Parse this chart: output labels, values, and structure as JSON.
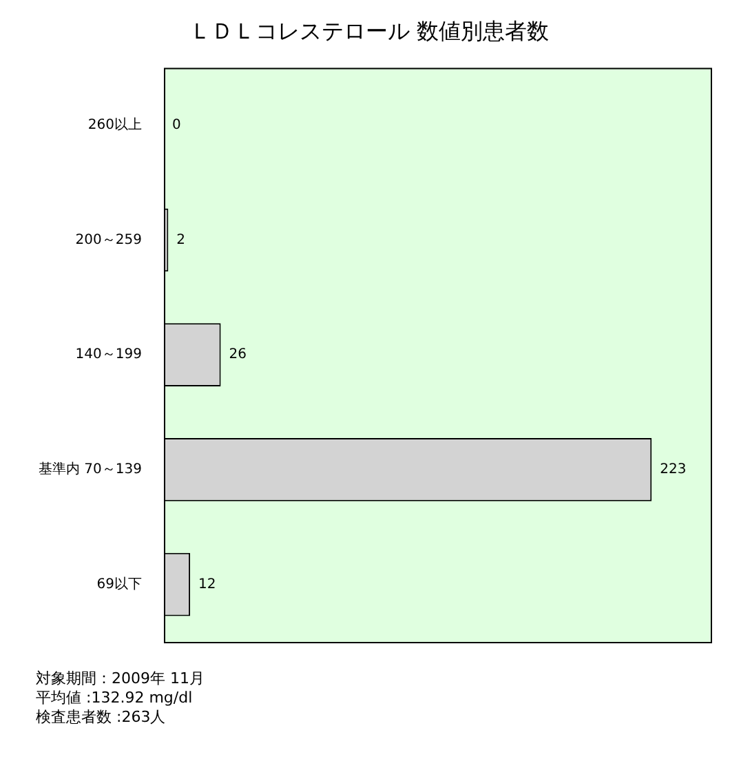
{
  "chart_data": {
    "type": "bar",
    "orientation": "horizontal",
    "title": "ＬＤＬコレステロール 数値別患者数",
    "categories": [
      "260以上",
      "200～259",
      "140～199",
      "基準内 70～139",
      "69以下"
    ],
    "values": [
      0,
      2,
      26,
      223,
      12
    ],
    "color": "#d3d3d3",
    "data_labels": true,
    "legend": false,
    "tick_labels": "y",
    "annotations": [
      "対象期間：2009年 11月",
      "平均値 :132.92 mg/dl",
      "検査患者数 :263人"
    ]
  }
}
